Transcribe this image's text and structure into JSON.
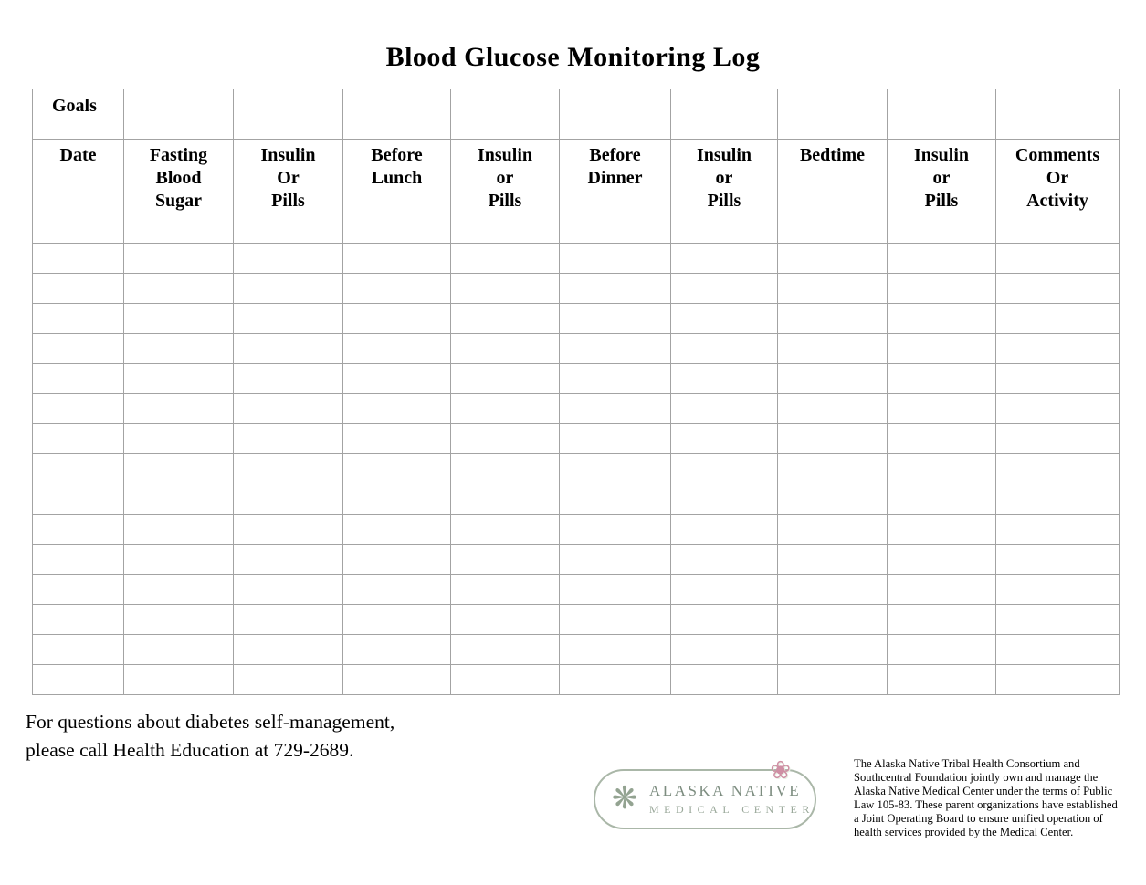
{
  "page": {
    "title": "Blood Glucose Monitoring Log"
  },
  "table": {
    "goals_label": "Goals",
    "columns": [
      {
        "label": [
          "Date"
        ]
      },
      {
        "label": [
          "Fasting",
          "Blood",
          "Sugar"
        ]
      },
      {
        "label": [
          "Insulin",
          "Or",
          "Pills"
        ]
      },
      {
        "label": [
          "Before",
          "Lunch"
        ]
      },
      {
        "label": [
          "Insulin",
          "or",
          "Pills"
        ]
      },
      {
        "label": [
          "Before",
          "Dinner"
        ]
      },
      {
        "label": [
          "Insulin",
          "or",
          "Pills"
        ]
      },
      {
        "label": [
          "Bedtime"
        ]
      },
      {
        "label": [
          "Insulin",
          "or",
          "Pills"
        ]
      },
      {
        "label": [
          "Comments",
          "Or",
          "Activity"
        ]
      }
    ],
    "empty_row_count": 16
  },
  "footer": {
    "line1": "For questions about diabetes self-management,",
    "line2": "please call Health Education at 729-2689."
  },
  "logo": {
    "name_line1": "ALASKA NATIVE",
    "name_line2": "MEDICAL CENTER",
    "emblem_icon": "❋",
    "flower_icon": "❀"
  },
  "disclaimer": {
    "lines": [
      "The Alaska Native Tribal Health Consortium and",
      "Southcentral Foundation jointly own and manage the",
      "Alaska Native Medical Center under the terms of Public",
      "Law 105-83.  These parent organizations have established",
      "a Joint Operating Board to ensure unified operation of",
      "health services provided by the Medical Center."
    ]
  },
  "colors": {
    "table_border": "#a3a3a3",
    "logo_green": "#7d8d80",
    "flower_pink": "#cf8fa4"
  }
}
